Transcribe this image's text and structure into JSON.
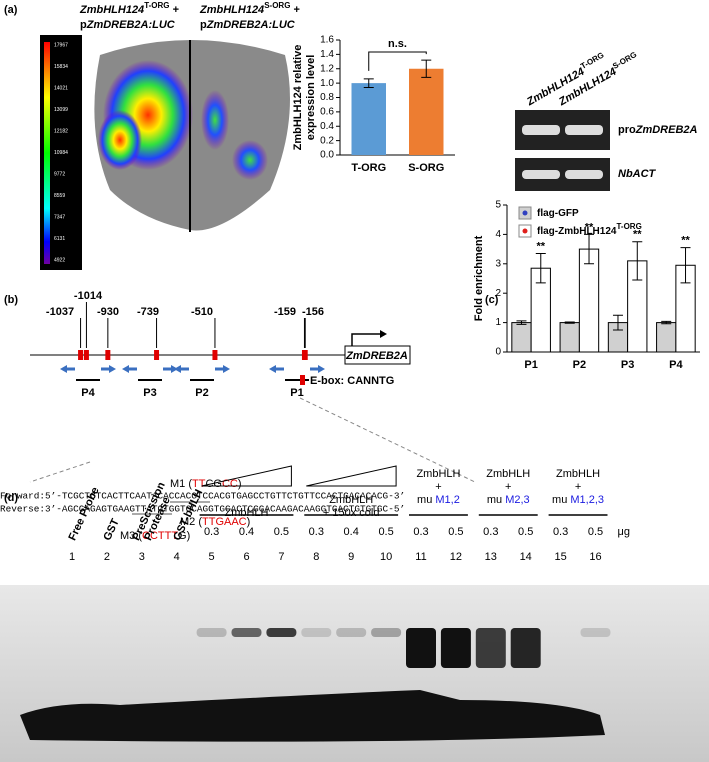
{
  "panel_labels": [
    "(a)",
    "(b)",
    "(c)",
    "(d)"
  ],
  "panel_a": {
    "leaf_left": {
      "gene": "ZmbHLH124",
      "sup": "T-ORG",
      "plus": " +",
      "p": "p",
      "reporter": "ZmDREB2A:LUC"
    },
    "leaf_right": {
      "gene": "ZmbHLH124",
      "sup": "S-ORG",
      "plus": " +",
      "p": "p",
      "reporter": "ZmDREB2A:LUC"
    },
    "colorbar_labels": [
      "17967",
      "15834",
      "14021",
      "13099",
      "12182",
      "10984",
      "9772",
      "8559",
      "7347",
      "6131",
      "4922"
    ],
    "gel_lanes": [
      {
        "gene": "ZmbHLH124",
        "sup": "T-ORG"
      },
      {
        "gene": "ZmbHLH124",
        "sup": "S-ORG"
      }
    ],
    "gel_rows": [
      {
        "pre": "pro",
        "gene": "ZmDREB2A"
      },
      {
        "pre": "",
        "gene": "NbACT"
      }
    ]
  },
  "chart_data": [
    {
      "type": "bar",
      "y_label_lines": [
        "ZmbHLH124 relative",
        "expression level"
      ],
      "categories": [
        "T-ORG",
        "S-ORG"
      ],
      "values": [
        1.0,
        1.2
      ],
      "errors": [
        0.06,
        0.12
      ],
      "colors": [
        "#5b9bd5",
        "#ed7d31"
      ],
      "annotation": "n.s.",
      "ylim": [
        0,
        1.6
      ],
      "yticks": [
        {
          "value": 0,
          "label": "0.0"
        },
        {
          "value": 0.2,
          "label": "0.2"
        },
        {
          "value": 0.4,
          "label": "0.4"
        },
        {
          "value": 0.6,
          "label": "0.6"
        },
        {
          "value": 0.8,
          "label": "0.8"
        },
        {
          "value": 1.0,
          "label": "1.0"
        },
        {
          "value": 1.2,
          "label": "1.2"
        },
        {
          "value": 1.4,
          "label": "1.4"
        },
        {
          "value": 1.6,
          "label": "1.6"
        }
      ]
    },
    {
      "type": "bar",
      "y_label": "Fold enrichment",
      "categories": [
        "P1",
        "P2",
        "P3",
        "P4"
      ],
      "series": [
        {
          "name": "flag-GFP",
          "color": "#d0d0d0",
          "dot": "#3040c0",
          "values": [
            1.0,
            1.0,
            1.0,
            1.0
          ],
          "errors": [
            0.06,
            0.02,
            0.25,
            0.04
          ]
        },
        {
          "name": "flag-ZmbHLH124",
          "sup": "T-ORG",
          "color": "#ffffff",
          "dot": "#e0201c",
          "values": [
            2.85,
            3.5,
            3.1,
            2.95
          ],
          "errors": [
            0.5,
            0.5,
            0.65,
            0.6
          ]
        }
      ],
      "annotations": [
        "**",
        "**",
        "**",
        "**"
      ],
      "ylim": [
        0,
        5
      ],
      "yticks": [
        0,
        1,
        2,
        3,
        4,
        5
      ],
      "legend": "upper-left"
    }
  ],
  "panel_b": {
    "positions": [
      -1037,
      -1014,
      -930,
      -739,
      -510,
      -159,
      -156
    ],
    "gene": "ZmDREB2A",
    "primers": [
      "P4",
      "P3",
      "P2",
      "P1"
    ],
    "ebox": "E-box: CANNTG",
    "m1": {
      "label": "M1 (",
      "red1": "TT",
      "mid": "CG",
      "red2": "CC",
      "end": ")"
    },
    "m2": {
      "label": "M2 (",
      "red": "TTGAAC",
      "end": ")"
    },
    "m3": {
      "label": "M3 (",
      "red": "CCTTT",
      "mid": "G",
      "end": ")"
    },
    "forward": "Forward:5’-TCGCTCTCACTTCAATACACCACGTCCACGTGAGCCTGTTCTGTTCCACTGACACACG-3’",
    "reverse": "Reverse:3’-AGCGAGAGTGAAGTTATGTGGTGCAGGTGCACTCGGACAAGACAAGGTGACTGTGTGC-5’"
  },
  "panel_d": {
    "lane_titles": [
      "Free Probe",
      "GST",
      "PreScission",
      "Protease",
      "GST-bHLH"
    ],
    "groups": [
      {
        "lines": [
          "ZmbHLH"
        ]
      },
      {
        "lines": [
          "ZmbHLH",
          "+ 150x cold"
        ]
      },
      {
        "lines": [
          "ZmbHLH",
          "+"
        ],
        "mu": "mu ",
        "mut": "M1,2"
      },
      {
        "lines": [
          "ZmbHLH",
          "+"
        ],
        "mu": "mu ",
        "mut": "M2,3"
      },
      {
        "lines": [
          "ZmbHLH",
          "+"
        ],
        "mu": "mu ",
        "mut": "M1,2,3"
      }
    ],
    "amounts": [
      0.3,
      0.4,
      0.5,
      0.3,
      0.4,
      0.5,
      0.3,
      0.5,
      0.3,
      0.5,
      0.3,
      0.5
    ],
    "unit": "μg",
    "lanes": [
      1,
      2,
      3,
      4,
      5,
      6,
      7,
      8,
      9,
      10,
      11,
      12,
      13,
      14,
      15,
      16
    ]
  }
}
